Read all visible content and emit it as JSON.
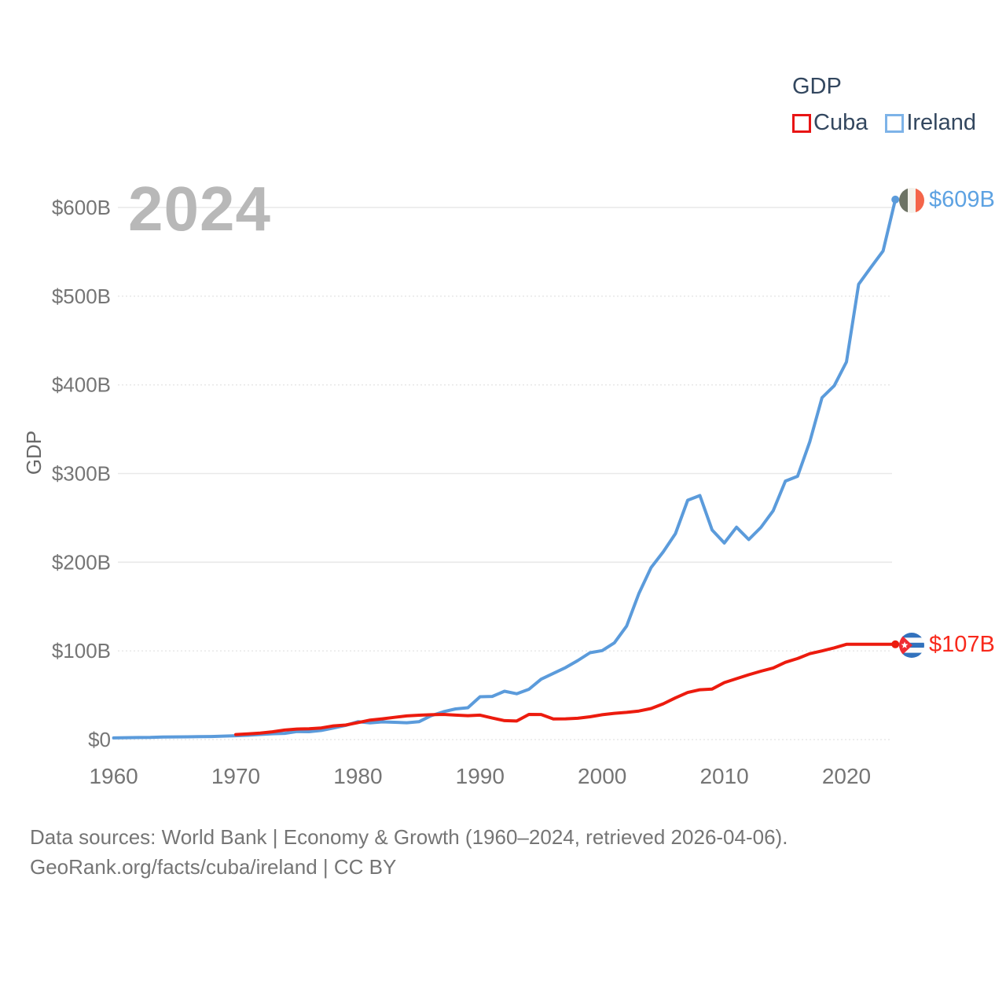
{
  "legend": {
    "title": "GDP",
    "items": [
      {
        "label": "Cuba",
        "box_color": "#e81414"
      },
      {
        "label": "Ireland",
        "box_color": "#7db3e8"
      }
    ]
  },
  "watermark": "2024",
  "end_labels": [
    {
      "series": "Ireland",
      "text": "$609B",
      "color": "#5da2e2",
      "flag": "ireland-flag"
    },
    {
      "series": "Cuba",
      "text": "$107B",
      "color": "#f8291c",
      "flag": "cuba-flag"
    }
  ],
  "footer": {
    "line1": "Data sources: World Bank | Economy & Growth (1960–2024, retrieved 2026-04-06).",
    "line2": "GeoRank.org/facts/cuba/ireland | CC BY"
  },
  "chart_data": {
    "type": "line",
    "title": "GDP",
    "xlabel": "",
    "ylabel": "GDP",
    "grid": "horizontal",
    "legend_position": "top-right",
    "xlim": [
      1960,
      2024
    ],
    "ylim": [
      0,
      630
    ],
    "x_ticks": [
      1960,
      1970,
      1980,
      1990,
      2000,
      2010,
      2020
    ],
    "y_ticks": [
      {
        "value": 0,
        "label": "$0",
        "style": "dashed"
      },
      {
        "value": 100,
        "label": "$100B",
        "style": "dashed"
      },
      {
        "value": 200,
        "label": "$200B",
        "style": "solid"
      },
      {
        "value": 300,
        "label": "$300B",
        "style": "solid"
      },
      {
        "value": 400,
        "label": "$400B",
        "style": "dashed"
      },
      {
        "value": 500,
        "label": "$500B",
        "style": "dashed"
      },
      {
        "value": 600,
        "label": "$600B",
        "style": "solid"
      }
    ],
    "x": [
      1960,
      1961,
      1962,
      1963,
      1964,
      1965,
      1966,
      1967,
      1968,
      1969,
      1970,
      1971,
      1972,
      1973,
      1974,
      1975,
      1976,
      1977,
      1978,
      1979,
      1980,
      1981,
      1982,
      1983,
      1984,
      1985,
      1986,
      1987,
      1988,
      1989,
      1990,
      1991,
      1992,
      1993,
      1994,
      1995,
      1996,
      1997,
      1998,
      1999,
      2000,
      2001,
      2002,
      2003,
      2004,
      2005,
      2006,
      2007,
      2008,
      2009,
      2010,
      2011,
      2012,
      2013,
      2014,
      2015,
      2016,
      2017,
      2018,
      2019,
      2020,
      2021,
      2022,
      2023,
      2024
    ],
    "series": [
      {
        "name": "Cuba",
        "color": "#ec1b0e",
        "end_label": "$107B",
        "values": [
          null,
          null,
          null,
          null,
          null,
          null,
          null,
          null,
          null,
          null,
          5.7,
          6.4,
          7.3,
          8.8,
          10.7,
          11.9,
          12.1,
          13.1,
          15.4,
          16.4,
          19.1,
          22.0,
          23.4,
          25.1,
          26.7,
          27.5,
          28.0,
          28.4,
          27.6,
          26.9,
          27.6,
          24.3,
          21.4,
          20.9,
          28.4,
          28.3,
          23.3,
          23.4,
          24.0,
          25.7,
          28.0,
          29.6,
          30.7,
          32.2,
          35.0,
          40.3,
          47.1,
          53.1,
          56.2,
          57.0,
          64.3,
          68.7,
          73.1,
          77.1,
          80.7,
          87.1,
          91.4,
          96.9,
          100.0,
          103.4,
          107.4,
          107.4,
          107.4,
          107.4,
          107.4
        ]
      },
      {
        "name": "Ireland",
        "color": "#5b9bdb",
        "end_label": "$609B",
        "values": [
          1.9,
          2.1,
          2.3,
          2.4,
          2.8,
          3.0,
          3.1,
          3.3,
          3.5,
          3.9,
          4.3,
          4.9,
          5.8,
          6.6,
          7.0,
          9.0,
          8.9,
          10.3,
          13.0,
          16.0,
          20.1,
          18.9,
          19.9,
          19.5,
          19.0,
          20.1,
          26.9,
          31.4,
          34.6,
          35.9,
          48.3,
          48.7,
          54.5,
          51.7,
          56.7,
          68.1,
          74.6,
          81.2,
          89.1,
          97.9,
          100.3,
          109.1,
          128.0,
          164.5,
          193.9,
          211.7,
          232.2,
          269.9,
          275.2,
          236.3,
          221.7,
          239.5,
          225.6,
          239.3,
          258.1,
          291.5,
          296.9,
          336.0,
          385.5,
          399.1,
          425.9,
          513.4,
          532.5,
          551.0,
          609.0
        ]
      }
    ]
  }
}
